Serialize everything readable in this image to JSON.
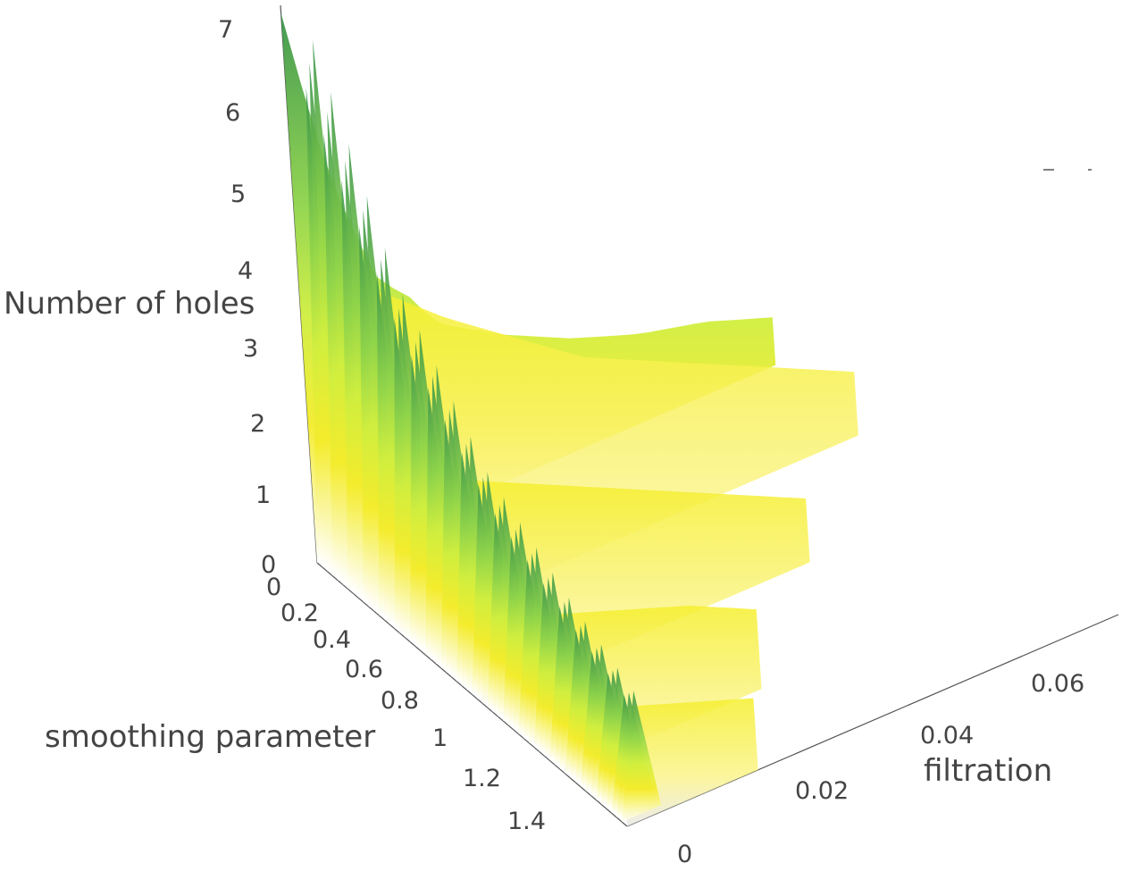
{
  "chart_data": {
    "type": "surface",
    "colorscale": [
      "#ffffff",
      "#f5f23a",
      "#ede631",
      "#b9ea45",
      "#8fd44a",
      "#3c9a4c"
    ],
    "z_axis": {
      "label": "Number of holes",
      "ticks": [
        "0",
        "1",
        "2",
        "3",
        "4",
        "5",
        "6",
        "7"
      ],
      "range": [
        0,
        7
      ]
    },
    "y_axis": {
      "label": "smoothing parameter",
      "ticks": [
        "0",
        "0.2",
        "0.4",
        "0.6",
        "0.8",
        "1",
        "1.2",
        "1.4"
      ],
      "range": [
        0,
        1.5
      ]
    },
    "x_axis": {
      "label": "filtration",
      "ticks": [
        "0",
        "0.02",
        "0.04",
        "0.06"
      ],
      "range": [
        0,
        0.075
      ]
    },
    "ridges": [
      {
        "smoothing": 0.0,
        "profile": [
          [
            0,
            6.9
          ],
          [
            0.004,
            5.2
          ],
          [
            0.008,
            4.0
          ],
          [
            0.012,
            3.1
          ],
          [
            0.016,
            2.8
          ],
          [
            0.02,
            2.3
          ],
          [
            0.03,
            1.8
          ],
          [
            0.04,
            1.4
          ],
          [
            0.05,
            1.1
          ],
          [
            0.06,
            0.9
          ],
          [
            0.07,
            0.6
          ]
        ]
      },
      {
        "smoothing": 0.4,
        "profile": [
          [
            0,
            4.3
          ],
          [
            0.01,
            3.6
          ],
          [
            0.02,
            3.0
          ],
          [
            0.03,
            2.4
          ],
          [
            0.04,
            2.0
          ],
          [
            0.05,
            1.6
          ],
          [
            0.06,
            1.2
          ],
          [
            0.07,
            0.8
          ]
        ]
      },
      {
        "smoothing": 0.8,
        "profile": [
          [
            0,
            2.8
          ],
          [
            0.01,
            2.4
          ],
          [
            0.02,
            2.0
          ],
          [
            0.03,
            1.6
          ],
          [
            0.04,
            1.2
          ],
          [
            0.05,
            0.8
          ]
        ]
      },
      {
        "smoothing": 1.2,
        "profile": [
          [
            0,
            2.0
          ],
          [
            0.01,
            1.7
          ],
          [
            0.02,
            1.4
          ],
          [
            0.03,
            1.0
          ]
        ]
      },
      {
        "smoothing": 1.5,
        "profile": [
          [
            0,
            1.5
          ],
          [
            0.01,
            1.2
          ],
          [
            0.02,
            0.9
          ]
        ]
      }
    ]
  }
}
